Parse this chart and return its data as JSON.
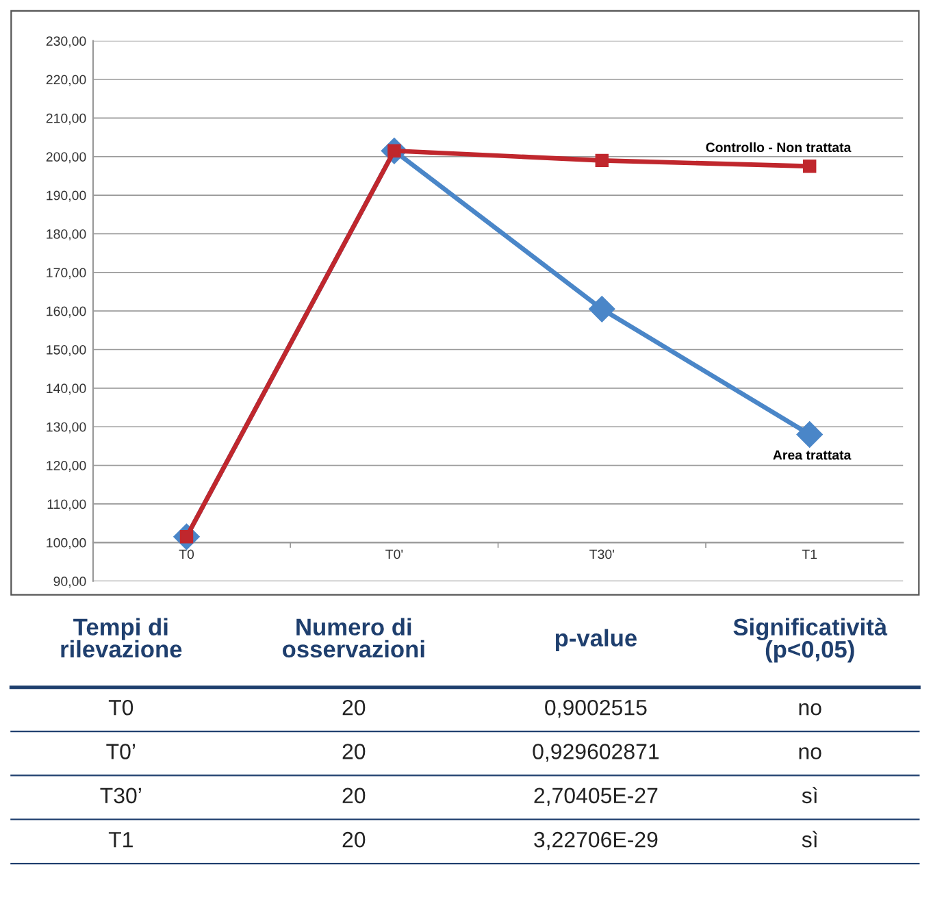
{
  "chart_data": [
    {
      "type": "line",
      "categories": [
        "T0",
        "T0'",
        "T30'",
        "T1"
      ],
      "series": [
        {
          "name": "Area trattata",
          "color": "#4a86c8",
          "marker": "diamond",
          "values": [
            101.5,
            201.5,
            160.5,
            128.0
          ]
        },
        {
          "name": "Controllo - Non trattata",
          "color": "#c0272d",
          "marker": "square",
          "values": [
            101.5,
            201.5,
            199.0,
            197.5
          ]
        }
      ],
      "ylim": [
        90,
        230
      ],
      "yticks": [
        {
          "value": 90,
          "label": "90,00"
        },
        {
          "value": 100,
          "label": "100,00"
        },
        {
          "value": 110,
          "label": "110,00"
        },
        {
          "value": 120,
          "label": "120,00"
        },
        {
          "value": 130,
          "label": "130,00"
        },
        {
          "value": 140,
          "label": "140,00"
        },
        {
          "value": 150,
          "label": "150,00"
        },
        {
          "value": 160,
          "label": "160,00"
        },
        {
          "value": 170,
          "label": "170,00"
        },
        {
          "value": 180,
          "label": "180,00"
        },
        {
          "value": 190,
          "label": "190,00"
        },
        {
          "value": 200,
          "label": "200,00"
        },
        {
          "value": 210,
          "label": "210,00"
        },
        {
          "value": 220,
          "label": "220,00"
        },
        {
          "value": 230,
          "label": "230,00"
        }
      ],
      "grid": "y",
      "legend": false,
      "line_style": "solid"
    },
    {
      "type": "other",
      "categories": [
        "Tempi di\nrilevazione",
        "Numero di\nosservazioni",
        "p-value",
        "Significatività\n(p<0,05)"
      ],
      "annotations": [
        "T0",
        "20",
        "0,9002515",
        "no",
        "T0’",
        "20",
        "0,929602871",
        "no",
        "T30’",
        "20",
        "2,70405E-27",
        "sì",
        "T1",
        "20",
        "3,22706E-29",
        "sì"
      ]
    }
  ]
}
